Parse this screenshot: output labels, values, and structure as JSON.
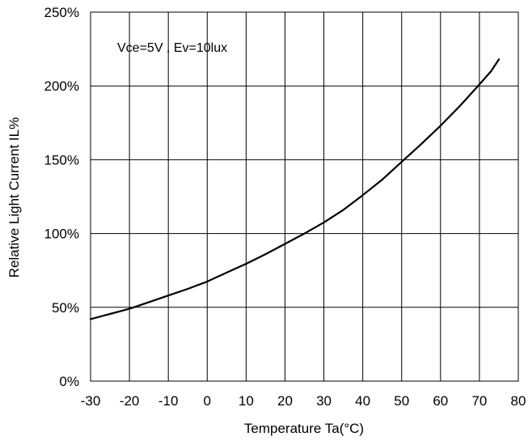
{
  "chart_data": {
    "type": "line",
    "title": "",
    "xlabel": "Temperature Ta(°C)",
    "ylabel": "Relative Light Current IL%",
    "xlim": [
      -30,
      80
    ],
    "ylim": [
      0,
      250
    ],
    "x_ticks": [
      -30,
      -20,
      -10,
      0,
      10,
      20,
      30,
      40,
      50,
      60,
      70,
      80
    ],
    "x_tick_labels": [
      "-30",
      "-20",
      "-10",
      "0",
      "10",
      "20",
      "30",
      "40",
      "50",
      "60",
      "70",
      "80"
    ],
    "y_ticks": [
      0,
      50,
      100,
      150,
      200,
      250
    ],
    "y_tick_labels": [
      "0%",
      "50%",
      "100%",
      "150%",
      "200%",
      "250%"
    ],
    "grid": true,
    "annotation": "Vce=5V , Ev=10lux",
    "series": [
      {
        "x": [
          -30,
          -25,
          -20,
          -15,
          -10,
          -5,
          0,
          5,
          10,
          15,
          20,
          25,
          30,
          35,
          40,
          45,
          50,
          55,
          60,
          65,
          70,
          73,
          75
        ],
        "y": [
          42,
          45.5,
          49,
          53.5,
          58,
          62.5,
          67.5,
          73.5,
          79.5,
          86,
          93,
          100,
          107.5,
          116,
          126,
          136.5,
          148.5,
          160.5,
          173,
          186.5,
          201,
          210,
          218
        ]
      }
    ]
  }
}
